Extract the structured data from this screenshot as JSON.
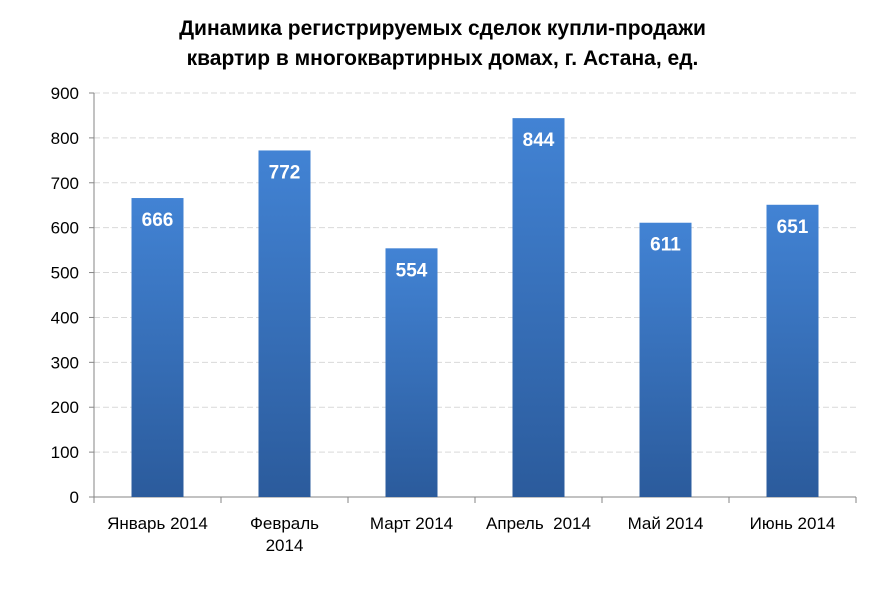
{
  "chart_data": {
    "type": "bar",
    "title_lines": [
      "Динамика регистрируемых  сделок купли-продажи",
      "квартир в многоквартирных домах, г. Астана, ед."
    ],
    "categories": [
      [
        "Январь 2014"
      ],
      [
        "Февраль",
        "2014"
      ],
      [
        "Март 2014"
      ],
      [
        "Апрель  2014"
      ],
      [
        "Май 2014"
      ],
      [
        "Июнь 2014"
      ]
    ],
    "values": [
      666,
      772,
      554,
      844,
      611,
      651
    ],
    "ylim": [
      0,
      900
    ],
    "yticks": [
      0,
      100,
      200,
      300,
      400,
      500,
      600,
      700,
      800,
      900
    ],
    "xlabel": "",
    "ylabel": "",
    "grid": true,
    "legend": "none",
    "colors": {
      "bar_top": "#4283d4",
      "bar_bottom": "#2b5b9c",
      "grid": "#d9d9d9",
      "axis": "#868686"
    }
  }
}
